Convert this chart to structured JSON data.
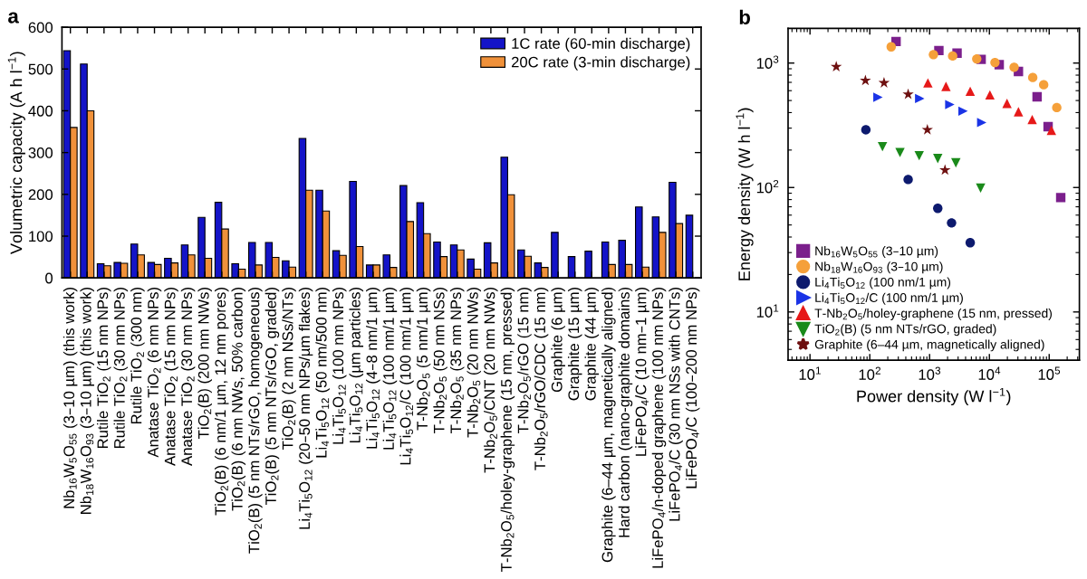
{
  "chart_data": [
    {
      "type": "bar",
      "title": "a",
      "ylabel": "Volumetric capacity (A h l$^{−1}$)",
      "categories": [
        "Nb$_{16}$W$_{5}$O$_{55}$ (3–10 µm) (this work)",
        "Nb$_{18}$W$_{16}$O$_{93}$ (3–10 µm) (this work)",
        "Rutile TiO$_{2}$ (15 nm NPs)",
        "Rutile TiO$_{2}$ (30 nm NPs)",
        "Rutile TiO$_{2}$ (300 nm)",
        "Anatase TiO$_{2}$ (6 nm NPs)",
        "Anatase TiO$_{2}$ (15 nm NPs)",
        "Anatase TiO$_{2}$ (30 nm NPs)",
        "TiO$_{2}$(B) (200 nm NWs)",
        "TiO$_{2}$(B) (6 nm/1 µm, 12 nm pores)",
        "TiO$_{2}$(B) (6 nm NWs, 50% carbon)",
        "TiO$_{2}$(B) (5 nm NTs/rGO, homogeneous)",
        "TiO$_{2}$(B) (5 nm NTs/rGO, graded)",
        "TiO$_{2}$(B) (2 nm NSs/NTs)",
        "Li$_{4}$Ti$_{5}$O$_{12}$ (20–50 nm NPs/µm flakes)",
        "Li$_{4}$Ti$_{5}$O$_{12}$ (50 nm/500 nm)",
        "Li$_{4}$Ti$_{5}$O$_{12}$ (100 nm NPs)",
        "Li$_{4}$Ti$_{5}$O$_{12}$ (µm particles)",
        "Li$_{4}$Ti$_{5}$O$_{12}$ (4–8 nm/1 µm)",
        "Li$_{4}$Ti$_{5}$O$_{12}$ (100 nm/1 µm)",
        "Li$_{4}$Ti$_{5}$O$_{12}$/C (100 nm/1 µm)",
        "T-Nb$_{2}$O$_{5}$ (5 nm/1 µm)",
        "T-Nb$_{2}$O$_{5}$ (50 nm NSs)",
        "T-Nb$_{2}$O$_{5}$ (35 nm NPs)",
        "T-Nb$_{2}$O$_{5}$ (20 nm NWs)",
        "T-Nb$_{2}$O$_{5}$/CNT (20 nm NWs)",
        "T-Nb$_{2}$O$_{5}$/holey-graphene (15 nm, pressed)",
        "T-Nb$_{2}$O$_{5}$/rGO (15 nm)",
        "T-Nb$_{2}$O$_{5}$/rGO/CDC (15 nm)",
        "Graphite (6 µm)",
        "Graphite (15 µm)",
        "Graphite (44 µm)",
        "Graphite (6–44 µm, magnetically aligned)",
        "Hard carbon (nano-graphite domains)",
        "LiFePO$_{4}$/C (10 nm–1 µm)",
        "LiFePO$_{4}$/n-doped graphene (100 nm NPs)",
        "LiFePO$_{4}$/C (30 nm NSs with CNTs)",
        "LiFePO$_{4}$/C (100–200 nm NPs)"
      ],
      "series": [
        {
          "name": "1C rate (60-min discharge)",
          "color": "#1414c8",
          "values": [
            544,
            512,
            34,
            37,
            81,
            37,
            47,
            79,
            145,
            181,
            34,
            85,
            85,
            41,
            334,
            210,
            65,
            231,
            31,
            55,
            221,
            180,
            86,
            79,
            45,
            84,
            289,
            67,
            36,
            109,
            51,
            64,
            86,
            90,
            170,
            146,
            229,
            150
          ]
        },
        {
          "name": "20C rate (3-min discharge)",
          "color": "#f0913a",
          "values": [
            360,
            400,
            29,
            35,
            55,
            32,
            36,
            55,
            47,
            117,
            21,
            31,
            49,
            26,
            210,
            160,
            54,
            75,
            31,
            25,
            135,
            106,
            51,
            67,
            21,
            36,
            199,
            52,
            25,
            null,
            null,
            null,
            32,
            32,
            26,
            109,
            130,
            null
          ]
        }
      ],
      "ylim": [
        0,
        600
      ],
      "yticks": [
        0,
        100,
        200,
        300,
        400,
        500,
        600
      ],
      "legend": "top right",
      "grid": false
    },
    {
      "type": "scatter",
      "title": "b",
      "xlabel": "Power density (W l$^{−1}$)",
      "ylabel": "Energy density (W h l$^{−1}$)",
      "log": "xy",
      "legend": "bottom left",
      "grid": false,
      "xlim": [
        4.3,
        320000
      ],
      "ylim": [
        4.1,
        1900
      ],
      "xticks": [
        {
          "value": 10,
          "label": "10$^{1}$"
        },
        {
          "value": 100,
          "label": "10$^{2}$"
        },
        {
          "value": 1000,
          "label": "10$^{3}$"
        },
        {
          "value": 10000,
          "label": "10$^{4}$"
        },
        {
          "value": 100000,
          "label": "10$^{5}$"
        }
      ],
      "yticks": [
        {
          "value": 10,
          "label": "10$^{1}$"
        },
        {
          "value": 100,
          "label": "10$^{2}$"
        },
        {
          "value": 1000,
          "label": "10$^{3}$"
        }
      ],
      "series": [
        {
          "name": "Nb$_{16}$W$_{5}$O$_{55}$ (3–10 µm)",
          "color": "#7b1f8c",
          "marker": "square",
          "x": [
            275,
            1430,
            2880,
            7280,
            14600,
            30600,
            62800,
            95900,
            156000
          ],
          "values": [
            1490,
            1260,
            1200,
            1070,
            970,
            855,
            536,
            308,
            83
          ]
        },
        {
          "name": "Nb$_{18}$W$_{16}$O$_{93}$ (3–10 µm)",
          "color": "#f5a03a",
          "marker": "circle",
          "x": [
            228,
            1160,
            2430,
            6150,
            12400,
            25900,
            53100,
            80900,
            134000
          ],
          "values": [
            1350,
            1170,
            1140,
            1080,
            1010,
            925,
            766,
            670,
            439
          ]
        },
        {
          "name": "Li$_{4}$Ti$_{5}$O$_{12}$ (100 nm/1 µm)",
          "color": "#0d1a6e",
          "marker": "circle",
          "x": [
            86,
            438,
            1370,
            2330,
            4780
          ],
          "values": [
            291,
            116,
            68,
            52,
            36
          ]
        },
        {
          "name": "Li$_{4}$Ti$_{5}$O$_{12}$/C (100 nm/1 µm)",
          "color": "#1a33e6",
          "marker": "triangle-right",
          "x": [
            137,
            684,
            2180,
            3630,
            7450
          ],
          "values": [
            531,
            519,
            464,
            411,
            333
          ]
        },
        {
          "name": "T-Nb$_{2}$O$_{5}$/holey-graphene (15 nm, pressed)",
          "color": "#e61919",
          "marker": "triangle",
          "x": [
            937,
            1880,
            4780,
            10200,
            19700,
            30600,
            52000,
            109000
          ],
          "values": [
            693,
            649,
            593,
            555,
            474,
            406,
            352,
            288
          ]
        },
        {
          "name": "TiO$_{2}$(B) (5 nm NTs/rGO, graded)",
          "color": "#1a8a1a",
          "marker": "triangle-down",
          "x": [
            163,
            320,
            670,
            1370,
            2750,
            7130
          ],
          "values": [
            213,
            191,
            180,
            171,
            158,
            99
          ]
        },
        {
          "name": "Graphite (6–44 µm, magnetically aligned)",
          "color": "#6e1010",
          "marker": "star",
          "x": [
            27.5,
            84.5,
            173,
            438,
            918,
            1810
          ],
          "values": [
            935,
            724,
            693,
            561,
            291,
            138
          ]
        }
      ]
    }
  ]
}
